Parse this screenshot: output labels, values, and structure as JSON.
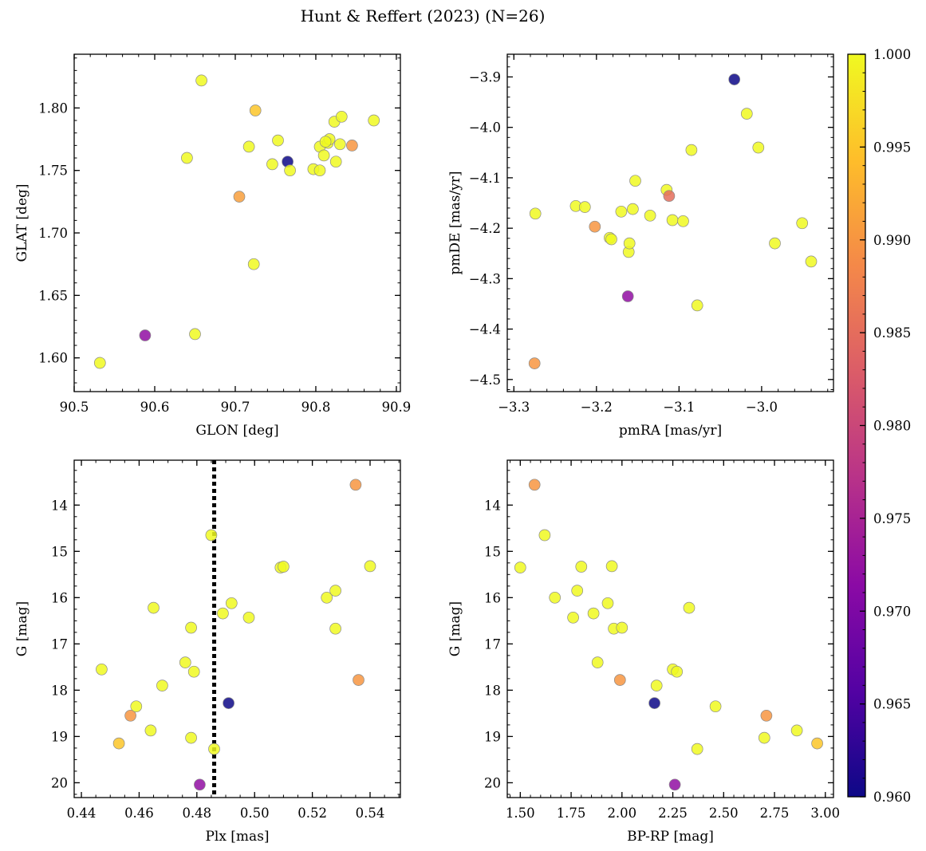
{
  "figure": {
    "title": "Hunt & Reffert (2023) (N=26)"
  },
  "colorbar": {
    "range": [
      0.96,
      1.0
    ],
    "ticks": [
      0.96,
      0.965,
      0.97,
      0.975,
      0.98,
      0.985,
      0.99,
      0.995,
      1.0
    ],
    "tick_labels": [
      "0.960",
      "0.965",
      "0.970",
      "0.975",
      "0.980",
      "0.985",
      "0.990",
      "0.995",
      "1.000"
    ],
    "colormap": "plasma",
    "colormap_stops": [
      "#0d0887",
      "#5302a3",
      "#8b0aa5",
      "#b83289",
      "#db5c68",
      "#f48849",
      "#febd2a",
      "#f0f921"
    ]
  },
  "chart_data": [
    {
      "type": "scatter",
      "id": "glon-glat",
      "xlabel": "GLON [deg]",
      "ylabel": "GLAT [deg]",
      "xlim": [
        90.5,
        90.905
      ],
      "ylim": [
        1.573,
        1.843
      ],
      "invert_y": false,
      "xticks": [
        90.5,
        90.6,
        90.7,
        90.8,
        90.9
      ],
      "xtick_labels": [
        "90.5",
        "90.6",
        "90.7",
        "90.8",
        "90.9"
      ],
      "yticks": [
        1.6,
        1.65,
        1.7,
        1.75,
        1.8
      ],
      "ytick_labels": [
        "1.60",
        "1.65",
        "1.70",
        "1.75",
        "1.80"
      ],
      "x_minor": 0.02,
      "y_minor": 0.01,
      "x": [
        90.532,
        90.588,
        90.64,
        90.65,
        90.658,
        90.705,
        90.717,
        90.723,
        90.725,
        90.746,
        90.753,
        90.765,
        90.768,
        90.797,
        90.805,
        90.805,
        90.81,
        90.815,
        90.817,
        90.823,
        90.825,
        90.83,
        90.832,
        90.845,
        90.872,
        90.812
      ],
      "y": [
        1.596,
        1.618,
        1.76,
        1.619,
        1.822,
        1.729,
        1.769,
        1.675,
        1.798,
        1.755,
        1.774,
        1.757,
        1.75,
        1.751,
        1.75,
        1.769,
        1.762,
        1.772,
        1.775,
        1.789,
        1.757,
        1.771,
        1.793,
        1.77,
        1.79,
        1.773
      ],
      "prob": [
        1.0,
        0.972,
        1.0,
        1.0,
        1.0,
        0.991,
        1.0,
        1.0,
        0.995,
        1.0,
        1.0,
        0.96,
        1.0,
        1.0,
        1.0,
        1.0,
        1.0,
        1.0,
        1.0,
        1.0,
        1.0,
        1.0,
        1.0,
        0.99,
        1.0,
        1.0
      ]
    },
    {
      "type": "scatter",
      "id": "pmra-pmde",
      "xlabel": "pmRA [mas/yr]",
      "ylabel": "pmDE [mas/yr]",
      "xlim": [
        -3.308,
        -2.913
      ],
      "ylim": [
        -4.524,
        -3.855
      ],
      "invert_y": false,
      "xticks": [
        -3.3,
        -3.2,
        -3.1,
        -3.0
      ],
      "xtick_labels": [
        "−3.3",
        "−3.2",
        "−3.1",
        "−3.0"
      ],
      "yticks": [
        -4.5,
        -4.4,
        -4.3,
        -4.2,
        -4.1,
        -4.0,
        -3.9
      ],
      "ytick_labels": [
        "−4.5",
        "−4.4",
        "−4.3",
        "−4.2",
        "−4.1",
        "−4.0",
        "−3.9"
      ],
      "x_minor": 0.02,
      "y_minor": 0.02,
      "x": [
        -3.275,
        -3.274,
        -3.225,
        -3.214,
        -3.202,
        -3.184,
        -3.182,
        -3.17,
        -3.162,
        -3.161,
        -3.16,
        -3.156,
        -3.153,
        -3.135,
        -3.115,
        -3.112,
        -3.108,
        -3.095,
        -3.085,
        -3.078,
        -3.033,
        -3.018,
        -3.004,
        -2.984,
        -2.951,
        -2.94
      ],
      "y": [
        -4.468,
        -4.171,
        -4.156,
        -4.158,
        -4.197,
        -4.219,
        -4.222,
        -4.167,
        -4.335,
        -4.247,
        -4.23,
        -4.162,
        -4.106,
        -4.175,
        -4.124,
        -4.136,
        -4.184,
        -4.186,
        -4.045,
        -4.353,
        -3.905,
        -3.973,
        -4.04,
        -4.23,
        -4.19,
        -4.266
      ],
      "prob": [
        0.99,
        1.0,
        1.0,
        1.0,
        0.99,
        1.0,
        1.0,
        1.0,
        0.972,
        1.0,
        1.0,
        1.0,
        1.0,
        1.0,
        1.0,
        0.985,
        1.0,
        1.0,
        1.0,
        1.0,
        0.96,
        1.0,
        1.0,
        1.0,
        1.0,
        1.0
      ]
    },
    {
      "type": "scatter",
      "id": "plx-g",
      "xlabel": "Plx [mas]",
      "ylabel": "G [mag]",
      "xlim": [
        0.4375,
        0.5505
      ],
      "ylim": [
        20.32,
        13.03
      ],
      "invert_y": true,
      "xticks": [
        0.44,
        0.46,
        0.48,
        0.5,
        0.52,
        0.54
      ],
      "xtick_labels": [
        "0.44",
        "0.46",
        "0.48",
        "0.50",
        "0.52",
        "0.54"
      ],
      "yticks": [
        14,
        15,
        16,
        17,
        18,
        19,
        20
      ],
      "ytick_labels": [
        "14",
        "15",
        "16",
        "17",
        "18",
        "19",
        "20"
      ],
      "x_minor": 0.005,
      "y_minor": 0.25,
      "vline": {
        "x": 0.486,
        "style": "dotted"
      },
      "x": [
        0.447,
        0.453,
        0.457,
        0.459,
        0.464,
        0.465,
        0.468,
        0.476,
        0.478,
        0.478,
        0.479,
        0.481,
        0.485,
        0.486,
        0.489,
        0.491,
        0.492,
        0.498,
        0.509,
        0.51,
        0.525,
        0.528,
        0.528,
        0.535,
        0.536,
        0.54
      ],
      "y": [
        17.55,
        19.15,
        18.55,
        18.35,
        18.87,
        16.22,
        17.9,
        17.4,
        16.65,
        19.03,
        17.6,
        20.04,
        14.65,
        19.27,
        16.34,
        18.28,
        16.12,
        16.43,
        15.35,
        15.33,
        16.0,
        15.85,
        16.67,
        13.56,
        17.78,
        15.32
      ],
      "prob": [
        1.0,
        0.995,
        0.99,
        1.0,
        1.0,
        1.0,
        1.0,
        1.0,
        1.0,
        1.0,
        1.0,
        0.972,
        1.0,
        1.0,
        1.0,
        0.96,
        1.0,
        1.0,
        1.0,
        1.0,
        1.0,
        1.0,
        1.0,
        0.99,
        0.99,
        1.0
      ]
    },
    {
      "type": "scatter",
      "id": "bprp-g",
      "xlabel": "BP-RP [mag]",
      "ylabel": "G [mag]",
      "xlim": [
        1.436,
        3.04
      ],
      "ylim": [
        20.32,
        13.03
      ],
      "invert_y": true,
      "xticks": [
        1.5,
        1.75,
        2.0,
        2.25,
        2.5,
        2.75,
        3.0
      ],
      "xtick_labels": [
        "1.50",
        "1.75",
        "2.00",
        "2.25",
        "2.50",
        "2.75",
        "3.00"
      ],
      "yticks": [
        14,
        15,
        16,
        17,
        18,
        19,
        20
      ],
      "ytick_labels": [
        "14",
        "15",
        "16",
        "17",
        "18",
        "19",
        "20"
      ],
      "x_minor": 0.05,
      "y_minor": 0.25,
      "x": [
        1.5,
        1.57,
        1.62,
        1.67,
        1.76,
        1.78,
        1.8,
        1.86,
        1.88,
        1.93,
        1.95,
        1.96,
        1.99,
        2.0,
        2.16,
        2.17,
        2.25,
        2.26,
        2.27,
        2.33,
        2.37,
        2.46,
        2.7,
        2.71,
        2.86,
        2.96
      ],
      "y": [
        15.35,
        13.56,
        14.65,
        16.0,
        16.43,
        15.85,
        15.33,
        16.34,
        17.4,
        16.12,
        15.32,
        16.67,
        17.78,
        16.65,
        18.28,
        17.9,
        17.55,
        20.04,
        17.6,
        16.22,
        19.27,
        18.35,
        19.03,
        18.55,
        18.87,
        19.15
      ],
      "prob": [
        1.0,
        0.99,
        1.0,
        1.0,
        1.0,
        1.0,
        1.0,
        1.0,
        1.0,
        1.0,
        1.0,
        1.0,
        0.99,
        1.0,
        0.96,
        1.0,
        1.0,
        0.972,
        1.0,
        1.0,
        1.0,
        1.0,
        1.0,
        0.99,
        1.0,
        0.995
      ]
    }
  ]
}
